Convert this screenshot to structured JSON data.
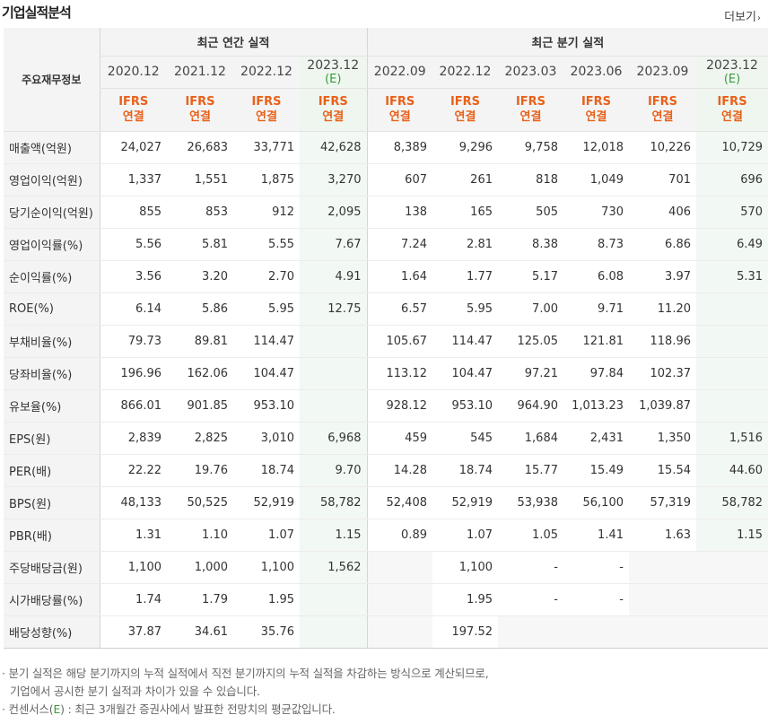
{
  "title": "기업실적분석",
  "more_label": "더보기",
  "more_arrow": "›",
  "item_header": "주요재무정보",
  "group_annual": "최근 연간 실적",
  "group_quarter": "최근 분기 실적",
  "est_mark": "(E)",
  "periods": [
    {
      "label": "2020.12",
      "est": false
    },
    {
      "label": "2021.12",
      "est": false
    },
    {
      "label": "2022.12",
      "est": false
    },
    {
      "label": "2023.12",
      "est": true
    },
    {
      "label": "2022.09",
      "est": false
    },
    {
      "label": "2022.12",
      "est": false
    },
    {
      "label": "2023.03",
      "est": false
    },
    {
      "label": "2023.06",
      "est": false
    },
    {
      "label": "2023.09",
      "est": false
    },
    {
      "label": "2023.12",
      "est": true
    }
  ],
  "basis_line1": "IFRS",
  "basis_line2": "연결",
  "rows": [
    {
      "label": "매출액(억원)",
      "group_start": true,
      "values": [
        "24,027",
        "26,683",
        "33,771",
        "42,628",
        "8,389",
        "9,296",
        "9,758",
        "12,018",
        "10,226",
        "10,729"
      ]
    },
    {
      "label": "영업이익(억원)",
      "values": [
        "1,337",
        "1,551",
        "1,875",
        "3,270",
        "607",
        "261",
        "818",
        "1,049",
        "701",
        "696"
      ]
    },
    {
      "label": "당기순이익(억원)",
      "values": [
        "855",
        "853",
        "912",
        "2,095",
        "138",
        "165",
        "505",
        "730",
        "406",
        "570"
      ]
    },
    {
      "label": "영업이익률(%)",
      "group_start": true,
      "values": [
        "5.56",
        "5.81",
        "5.55",
        "7.67",
        "7.24",
        "2.81",
        "8.38",
        "8.73",
        "6.86",
        "6.49"
      ]
    },
    {
      "label": "순이익률(%)",
      "values": [
        "3.56",
        "3.20",
        "2.70",
        "4.91",
        "1.64",
        "1.77",
        "5.17",
        "6.08",
        "3.97",
        "5.31"
      ]
    },
    {
      "label": "ROE(%)",
      "values": [
        "6.14",
        "5.86",
        "5.95",
        "12.75",
        "6.57",
        "5.95",
        "7.00",
        "9.71",
        "11.20",
        ""
      ]
    },
    {
      "label": "부채비율(%)",
      "group_start": true,
      "values": [
        "79.73",
        "89.81",
        "114.47",
        "",
        "105.67",
        "114.47",
        "125.05",
        "121.81",
        "118.96",
        ""
      ]
    },
    {
      "label": "당좌비율(%)",
      "values": [
        "196.96",
        "162.06",
        "104.47",
        "",
        "113.12",
        "104.47",
        "97.21",
        "97.84",
        "102.37",
        ""
      ]
    },
    {
      "label": "유보율(%)",
      "values": [
        "866.01",
        "901.85",
        "953.10",
        "",
        "928.12",
        "953.10",
        "964.90",
        "1,013.23",
        "1,039.87",
        ""
      ]
    },
    {
      "label": "EPS(원)",
      "group_start": true,
      "values": [
        "2,839",
        "2,825",
        "3,010",
        "6,968",
        "459",
        "545",
        "1,684",
        "2,431",
        "1,350",
        "1,516"
      ]
    },
    {
      "label": "PER(배)",
      "values": [
        "22.22",
        "19.76",
        "18.74",
        "9.70",
        "14.28",
        "18.74",
        "15.77",
        "15.49",
        "15.54",
        "44.60"
      ]
    },
    {
      "label": "BPS(원)",
      "values": [
        "48,133",
        "50,525",
        "52,919",
        "58,782",
        "52,408",
        "52,919",
        "53,938",
        "56,100",
        "57,319",
        "58,782"
      ]
    },
    {
      "label": "PBR(배)",
      "values": [
        "1.31",
        "1.10",
        "1.07",
        "1.15",
        "0.89",
        "1.07",
        "1.05",
        "1.41",
        "1.63",
        "1.15"
      ]
    },
    {
      "label": "주당배당금(원)",
      "group_start": true,
      "values": [
        "1,100",
        "1,000",
        "1,100",
        "1,562",
        "",
        "1,100",
        "-",
        "-",
        "",
        ""
      ],
      "blank": [
        4,
        8,
        9
      ]
    },
    {
      "label": "시가배당률(%)",
      "values": [
        "1.74",
        "1.79",
        "1.95",
        "",
        "",
        "1.95",
        "-",
        "-",
        "",
        ""
      ],
      "blank": [
        4,
        8,
        9
      ]
    },
    {
      "label": "배당성향(%)",
      "last": true,
      "values": [
        "37.87",
        "34.61",
        "35.76",
        "",
        "",
        "197.52",
        "",
        "",
        "",
        ""
      ],
      "blank": [
        4,
        6,
        7,
        8,
        9
      ]
    }
  ],
  "notes": {
    "line1": "· 분기 실적은 해당 분기까지의 누적 실적에서 직전 분기까지의 누적 실적을 차감하는 방식으로 계산되므로,",
    "line2": "기업에서 공시한 분기 실적과 차이가 있을 수 있습니다.",
    "line3_prefix": "· 컨센서스(",
    "line3_em": "E",
    "line3_suffix": ") : 최근 3개월간 증권사에서 발표한 전망치의 평균값입니다."
  }
}
